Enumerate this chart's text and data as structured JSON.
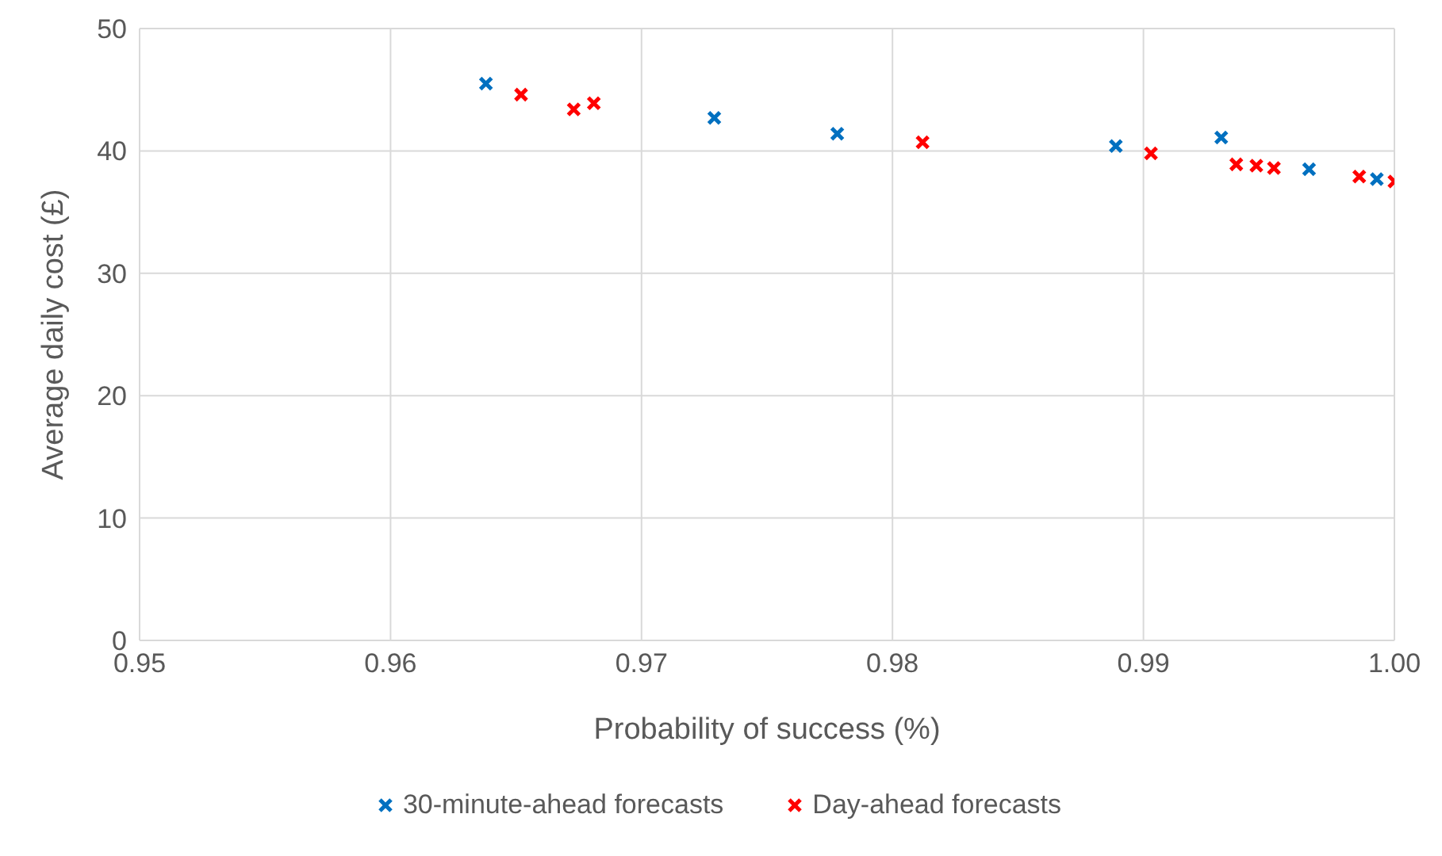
{
  "chart_data": {
    "type": "scatter",
    "xlabel": "Probability of success (%)",
    "ylabel": "Average daily cost (£)",
    "xlim": [
      0.95,
      1.0
    ],
    "xticks": [
      {
        "value": 0.95,
        "label": "0.95"
      },
      {
        "value": 0.96,
        "label": "0.96"
      },
      {
        "value": 0.97,
        "label": "0.97"
      },
      {
        "value": 0.98,
        "label": "0.98"
      },
      {
        "value": 0.99,
        "label": "0.99"
      },
      {
        "value": 1.0,
        "label": "1.00"
      }
    ],
    "ylim": [
      0,
      50
    ],
    "yticks": [
      0,
      10,
      20,
      30,
      40,
      50
    ],
    "grid": true,
    "legend": "bottom",
    "marker": "cross",
    "series": [
      {
        "name": "30-minute-ahead forecasts",
        "color": "#0070c0",
        "x": [
          0.9638,
          0.9729,
          0.9778,
          0.9889,
          0.9931,
          0.9966,
          0.9993
        ],
        "values": [
          45.5,
          42.7,
          41.4,
          40.4,
          41.1,
          38.5,
          37.7
        ]
      },
      {
        "name": "Day-ahead forecasts",
        "color": "#ff0000",
        "x": [
          0.9652,
          0.9673,
          0.9681,
          0.9812,
          0.9903,
          0.9937,
          0.9945,
          0.9952,
          0.9986,
          1.0
        ],
        "values": [
          44.6,
          43.4,
          43.9,
          40.7,
          39.8,
          38.9,
          38.8,
          38.6,
          37.9,
          37.5
        ]
      }
    ]
  }
}
